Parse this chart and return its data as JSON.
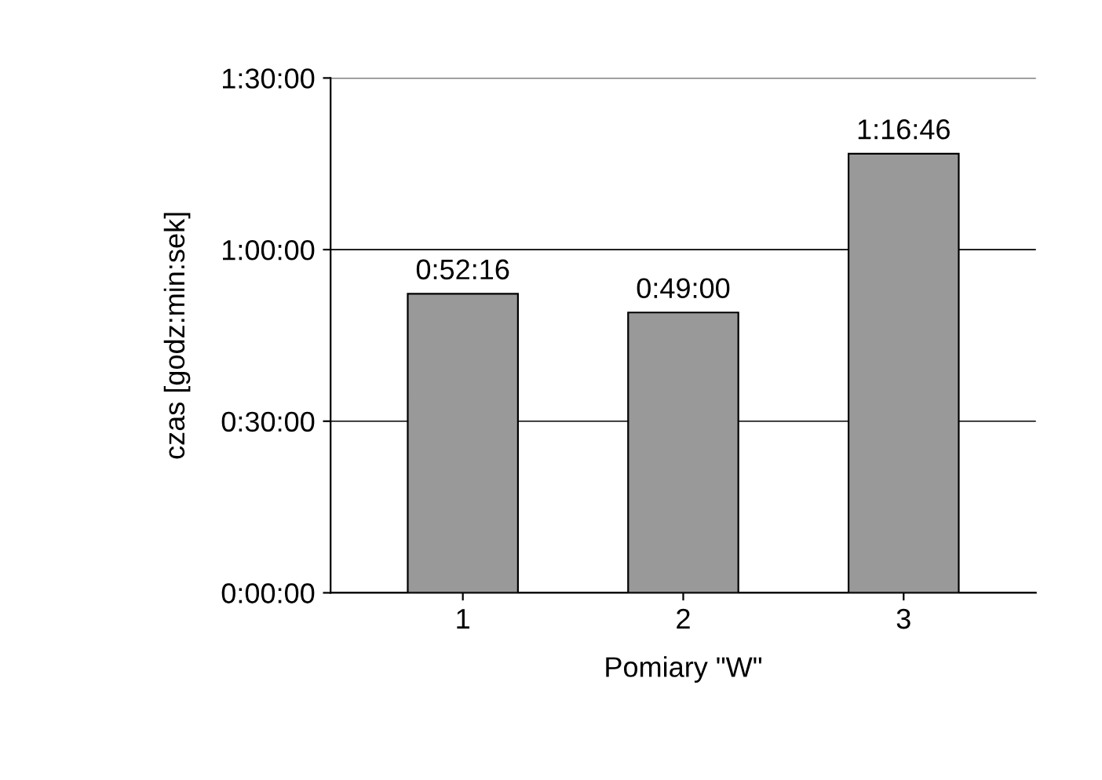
{
  "chart_data": {
    "type": "bar",
    "xlabel": "Pomiary \"W\"",
    "ylabel": "czas [godz:min:sek]",
    "categories": [
      "1",
      "2",
      "3"
    ],
    "values": [
      52.27,
      49,
      76.77
    ],
    "value_labels": [
      "0:52:16",
      "0:49:00",
      "1:16:46"
    ],
    "color": "#999999",
    "ylim": [
      0,
      90
    ],
    "yticks": [
      {
        "value": 0,
        "label": "0:00:00"
      },
      {
        "value": 30,
        "label": "0:30:00"
      },
      {
        "value": 60,
        "label": "1:00:00"
      },
      {
        "value": 90,
        "label": "1:30:00"
      }
    ],
    "grid": "y"
  }
}
